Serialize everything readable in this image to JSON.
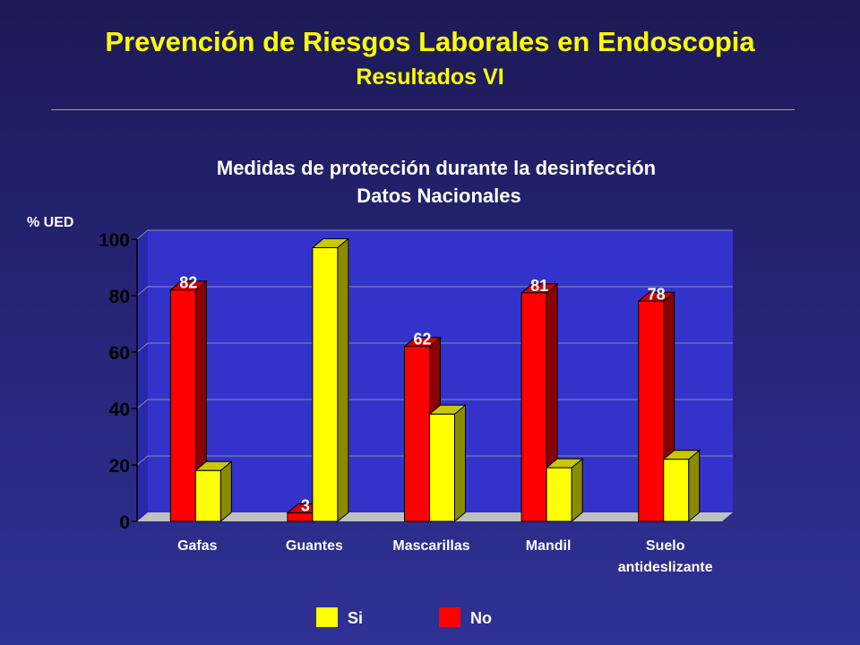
{
  "slide": {
    "title": "Prevención de Riesgos Laborales en Endoscopia",
    "subtitle": "Resultados VI"
  },
  "colors": {
    "title": "#ffff00",
    "background": "#252475",
    "plot_bg": "#3333cc",
    "grid": "#8a8ab0",
    "floor": "#c0c0c0",
    "si_front": "#ffff00",
    "si_side": "#8b8b00",
    "no_front": "#ff0000",
    "no_side": "#8b0000",
    "text": "#ffffff"
  },
  "chart_data": {
    "type": "bar",
    "title": "Medidas de protección durante la desinfección",
    "subtitle": "Datos Nacionales",
    "ylabel": "% UED",
    "ylim": [
      0,
      100
    ],
    "yticks": [
      0,
      20,
      40,
      60,
      80,
      100
    ],
    "grid": true,
    "legend_position": "bottom",
    "categories": [
      [
        "Gafas"
      ],
      [
        "Guantes"
      ],
      [
        "Mascarillas"
      ],
      [
        "Mandil"
      ],
      [
        "Suelo",
        "antideslizante"
      ]
    ],
    "series": [
      {
        "name": "No",
        "color": "#ff0000",
        "values": [
          82,
          3,
          62,
          81,
          78
        ],
        "labels": [
          "82",
          "3",
          "62",
          "81",
          "78"
        ]
      },
      {
        "name": "Si",
        "color": "#ffff00",
        "values": [
          18,
          97,
          38,
          19,
          22
        ],
        "labels": [
          "",
          "",
          "",
          "",
          ""
        ]
      }
    ],
    "legend": [
      "Si",
      "No"
    ]
  }
}
